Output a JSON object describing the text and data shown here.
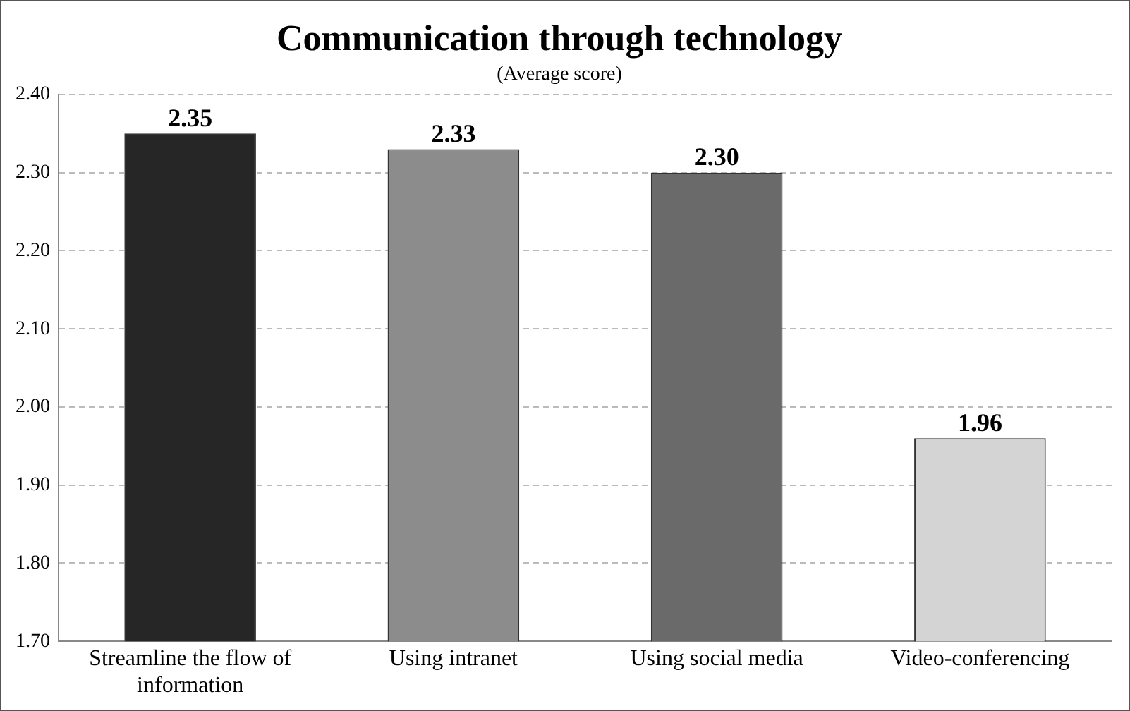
{
  "chart_data": {
    "type": "bar",
    "title": "Communication through technology",
    "subtitle": "(Average score)",
    "categories": [
      "Streamline the flow of information",
      "Using intranet",
      "Using social media",
      "Video-conferencing"
    ],
    "values": [
      2.35,
      2.33,
      2.3,
      1.96
    ],
    "colors": [
      "#262626",
      "#8c8c8c",
      "#6a6a6a",
      "#d4d4d4"
    ],
    "value_labels": [
      "2.35",
      "2.33",
      "2.30",
      "1.96"
    ],
    "ylim": [
      1.7,
      2.4
    ],
    "yticks": [
      {
        "value": 1.7,
        "label": "1.70"
      },
      {
        "value": 1.8,
        "label": "1.80"
      },
      {
        "value": 1.9,
        "label": "1.90"
      },
      {
        "value": 2.0,
        "label": "2.00"
      },
      {
        "value": 2.1,
        "label": "2.10"
      },
      {
        "value": 2.2,
        "label": "2.20"
      },
      {
        "value": 2.3,
        "label": "2.30"
      },
      {
        "value": 2.4,
        "label": "2.40"
      }
    ],
    "grid": "y",
    "legend": false
  }
}
